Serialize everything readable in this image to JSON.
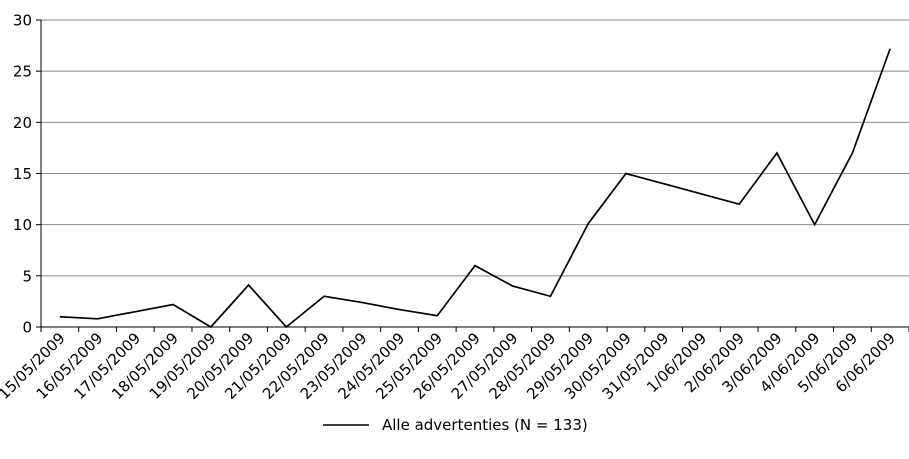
{
  "chart_data": {
    "type": "line",
    "categories": [
      "15/05/2009",
      "16/05/2009",
      "17/05/2009",
      "18/05/2009",
      "19/05/2009",
      "20/05/2009",
      "21/05/2009",
      "22/05/2009",
      "23/05/2009",
      "24/05/2009",
      "25/05/2009",
      "26/05/2009",
      "27/05/2009",
      "28/05/2009",
      "29/05/2009",
      "30/05/2009",
      "31/05/2009",
      "1/06/2009",
      "2/06/2009",
      "3/06/2009",
      "4/06/2009",
      "5/06/2009",
      "6/06/2009"
    ],
    "series": [
      {
        "name": "Alle advertenties (N = 133)",
        "values": [
          1,
          0.8,
          1.5,
          2.2,
          0,
          4.1,
          0,
          3,
          2.4,
          1.7,
          1.1,
          6,
          4,
          3,
          10.1,
          15,
          14,
          13,
          12,
          17,
          10,
          17,
          27.2
        ],
        "color": "#000000"
      }
    ],
    "yticks": [
      0,
      5,
      10,
      15,
      20,
      25,
      30
    ],
    "ylim": [
      0,
      30
    ],
    "grid": "horizontal",
    "legend": "bottom-center",
    "title": "",
    "xlabel": "",
    "ylabel": ""
  }
}
